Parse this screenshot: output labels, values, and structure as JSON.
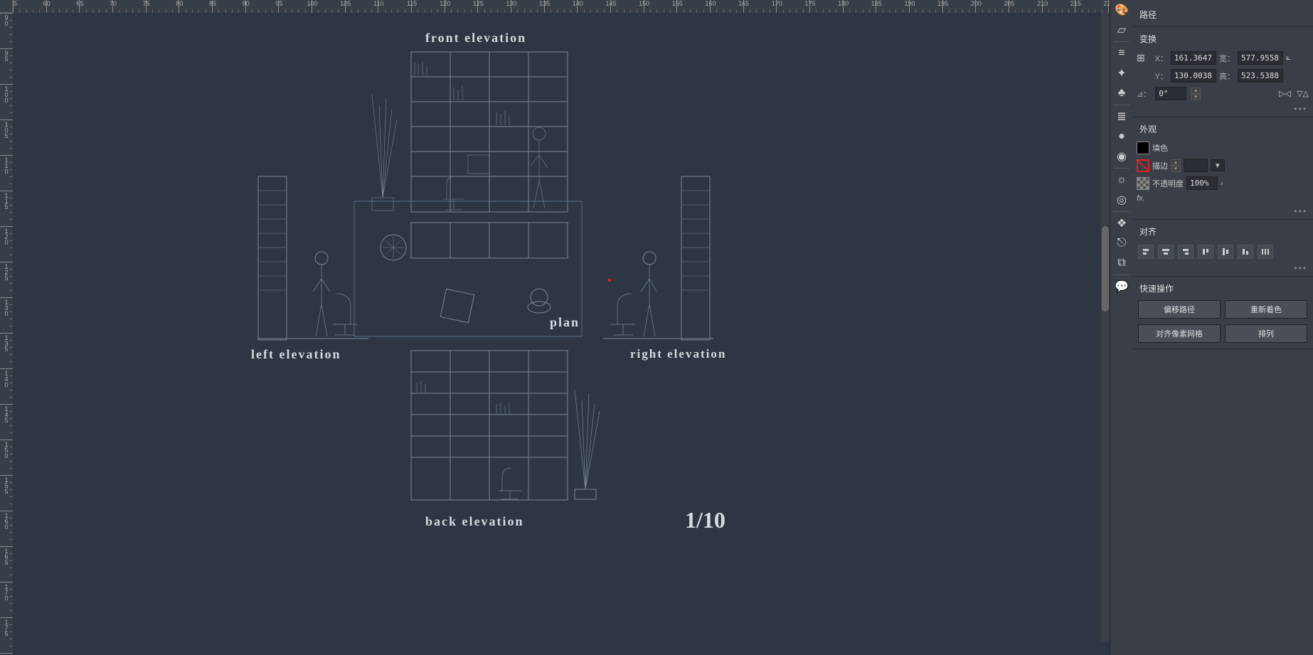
{
  "canvas": {
    "background_color": "#2d3642",
    "line_color": "#9aa4b2",
    "label_color": "#d8dbe0",
    "labels": {
      "front": "front elevation",
      "plan": "plan",
      "left": "left elevation",
      "right": "right elevation",
      "back": "back elevation"
    },
    "page_number": "1/10"
  },
  "ruler": {
    "h_start": 55,
    "h_end": 220,
    "h_step_major": 5,
    "h_minor_per_major": 5,
    "v_start": 90,
    "v_end": 180,
    "v_step_major": 5,
    "v_minor_per_major": 5
  },
  "tool_icons": [
    {
      "name": "palette-icon",
      "glyph": "🎨"
    },
    {
      "name": "page-icon",
      "glyph": "▱"
    },
    {
      "sep": true
    },
    {
      "name": "menu-icon",
      "glyph": "≡"
    },
    {
      "name": "sparkle-icon",
      "glyph": "✦"
    },
    {
      "name": "club-icon",
      "glyph": "♣"
    },
    {
      "sep": true
    },
    {
      "name": "lines-icon",
      "glyph": "≣"
    },
    {
      "name": "circle-icon",
      "glyph": "●"
    },
    {
      "name": "sphere-icon",
      "glyph": "◉"
    },
    {
      "sep": true
    },
    {
      "name": "sun-icon",
      "glyph": "☼"
    },
    {
      "name": "target-icon",
      "glyph": "◎"
    },
    {
      "sep": true
    },
    {
      "name": "layers-icon",
      "glyph": "❖"
    },
    {
      "name": "export-icon",
      "glyph": "⎋"
    },
    {
      "name": "doc-icon",
      "glyph": "⧉"
    },
    {
      "sep": true
    },
    {
      "name": "comment-icon",
      "glyph": "💬"
    }
  ],
  "panels": {
    "path": {
      "title": "路径"
    },
    "transform": {
      "title": "变换",
      "x_label": "X：",
      "x_value": "161.3647",
      "y_label": "Y：",
      "y_value": "130.0038",
      "w_label": "宽：",
      "w_value": "577.9558",
      "h_label": "高：",
      "h_value": "523.5388",
      "angle_label": "⊿：",
      "angle_value": "0°"
    },
    "appearance": {
      "title": "外观",
      "fill_label": "填色",
      "fill_value": "#000000",
      "stroke_label": "描边",
      "stroke_width": "",
      "opacity_label": "不透明度",
      "opacity_value": "100%",
      "fx_label": "fx."
    },
    "align": {
      "title": "对齐"
    },
    "quickops": {
      "title": "快速操作",
      "offset": "偏移路径",
      "recolor": "重新着色",
      "pixelgrid": "对齐像素网格",
      "arrange": "排列"
    }
  }
}
